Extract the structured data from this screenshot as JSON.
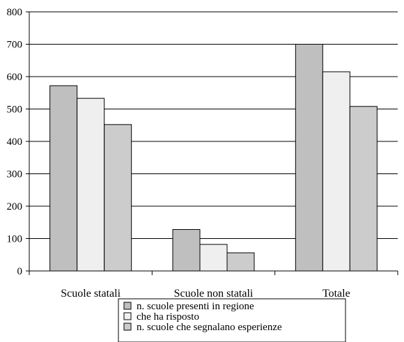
{
  "chart_data": {
    "type": "bar",
    "categories": [
      "Scuole statali",
      "Scuole non statali",
      "Totale"
    ],
    "series": [
      {
        "name": "n. scuole presenti in regione",
        "color": "#bfbfbf",
        "values": [
          572,
          128,
          700
        ]
      },
      {
        "name": "che ha risposto",
        "color": "#efefef",
        "values": [
          533,
          82,
          615
        ]
      },
      {
        "name": "n. scuole che segnalano esperienze",
        "color": "#cccccc",
        "values": [
          452,
          56,
          508
        ]
      }
    ],
    "ylim": [
      0,
      800
    ],
    "yticks": [
      0,
      100,
      200,
      300,
      400,
      500,
      600,
      700,
      800
    ],
    "grid": true,
    "legend": "bottom"
  }
}
